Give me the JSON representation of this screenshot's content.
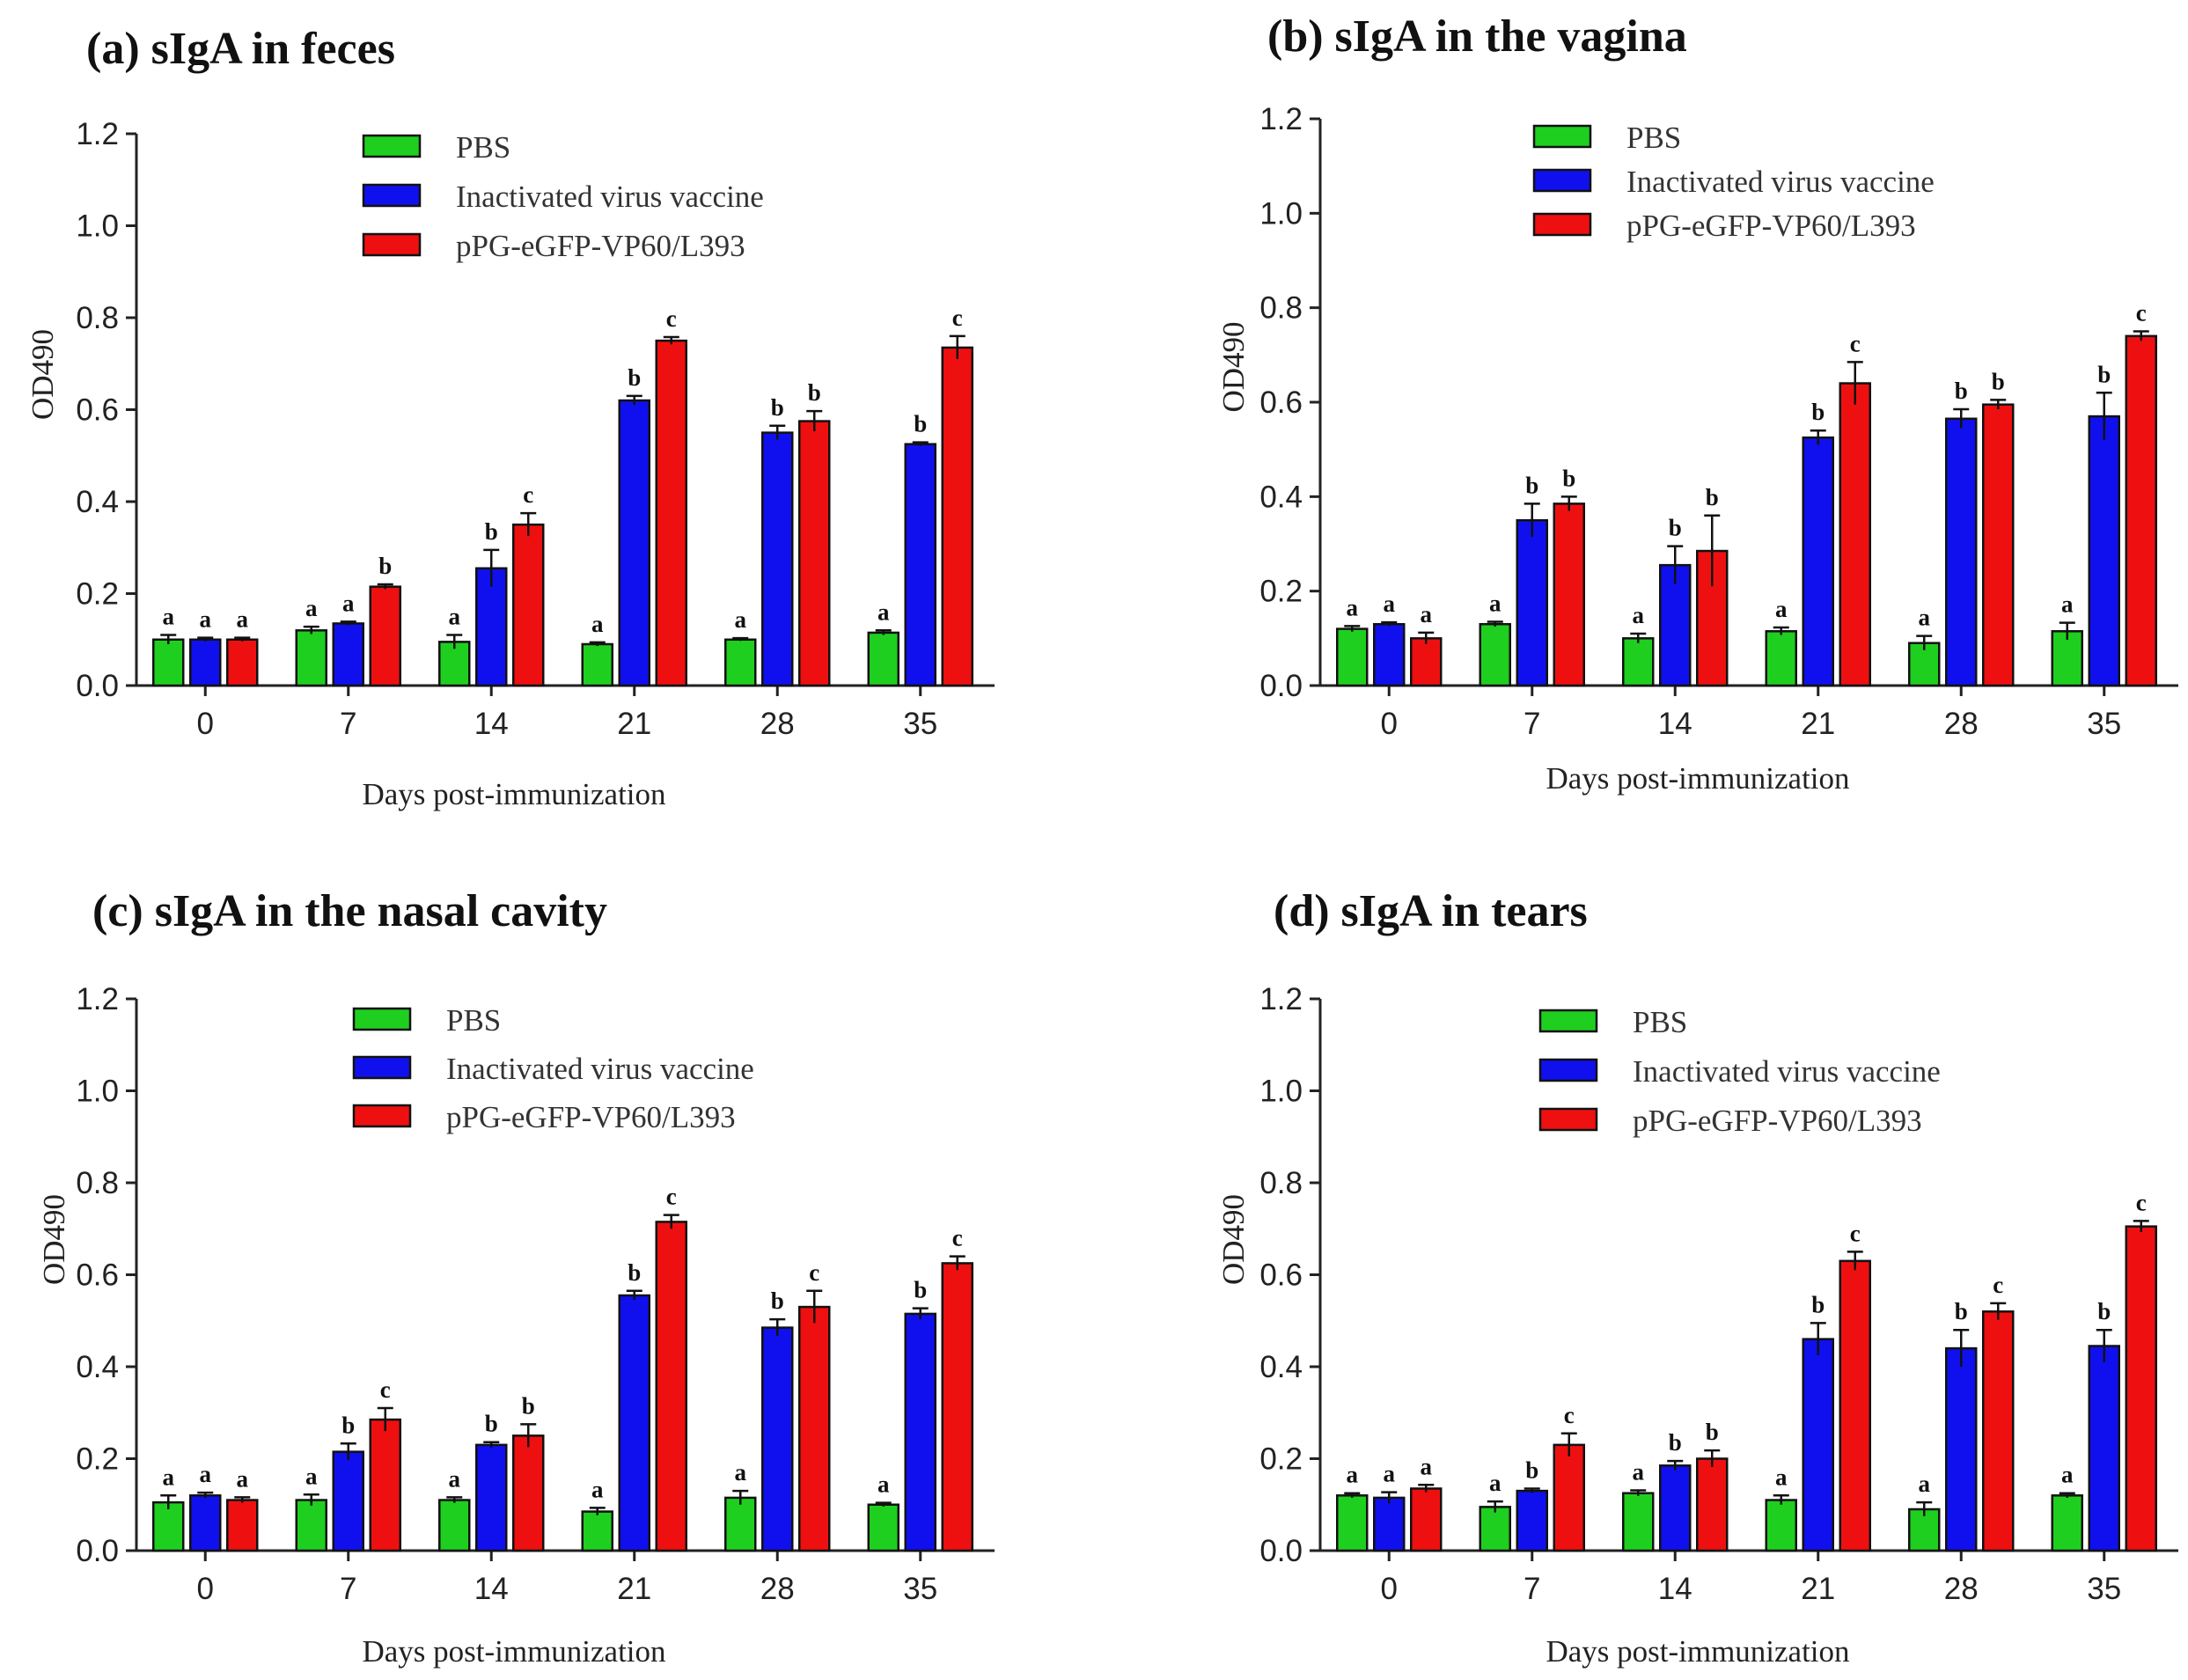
{
  "chart_data": [
    {
      "type": "bar",
      "title": "(a) sIgA in feces",
      "xlabel": "Days post-immunization",
      "ylabel": "OD490",
      "ylim": [
        0,
        1.2
      ],
      "yticks": [
        "0.0",
        "0.2",
        "0.4",
        "0.6",
        "0.8",
        "1.0",
        "1.2"
      ],
      "categories": [
        "0",
        "7",
        "14",
        "21",
        "28",
        "35"
      ],
      "legend_position": "top-center",
      "series": [
        {
          "name": "PBS",
          "color": "#1fcf1f",
          "values": [
            0.1,
            0.12,
            0.095,
            0.09,
            0.1,
            0.115
          ],
          "errors": [
            0.01,
            0.008,
            0.015,
            0.004,
            0.003,
            0.005
          ],
          "letters": [
            "a",
            "a",
            "a",
            "a",
            "a",
            "a"
          ]
        },
        {
          "name": "Inactivated virus vaccine",
          "color": "#1010ee",
          "values": [
            0.1,
            0.135,
            0.255,
            0.62,
            0.55,
            0.525
          ],
          "errors": [
            0.004,
            0.004,
            0.04,
            0.01,
            0.015,
            0.004
          ],
          "letters": [
            "a",
            "a",
            "b",
            "b",
            "b",
            "b"
          ]
        },
        {
          "name": "pPG-eGFP-VP60/L393",
          "color": "#ee1010",
          "values": [
            0.1,
            0.215,
            0.35,
            0.75,
            0.575,
            0.735
          ],
          "errors": [
            0.004,
            0.005,
            0.025,
            0.008,
            0.022,
            0.025
          ],
          "letters": [
            "a",
            "b",
            "c",
            "c",
            "b",
            "c"
          ]
        }
      ]
    },
    {
      "type": "bar",
      "title": "(b) sIgA in the vagina",
      "xlabel": "Days post-immunization",
      "ylabel": "OD490",
      "ylim": [
        0,
        1.2
      ],
      "yticks": [
        "0.0",
        "0.2",
        "0.4",
        "0.6",
        "0.8",
        "1.0",
        "1.2"
      ],
      "categories": [
        "0",
        "7",
        "14",
        "21",
        "28",
        "35"
      ],
      "legend_position": "top-center",
      "series": [
        {
          "name": "PBS",
          "color": "#1fcf1f",
          "values": [
            0.12,
            0.13,
            0.1,
            0.115,
            0.09,
            0.115
          ],
          "errors": [
            0.006,
            0.005,
            0.01,
            0.008,
            0.015,
            0.018
          ],
          "letters": [
            "a",
            "a",
            "a",
            "a",
            "a",
            "a"
          ]
        },
        {
          "name": "Inactivated virus vaccine",
          "color": "#1010ee",
          "values": [
            0.13,
            0.35,
            0.255,
            0.525,
            0.565,
            0.57
          ],
          "errors": [
            0.004,
            0.035,
            0.04,
            0.015,
            0.02,
            0.05
          ],
          "letters": [
            "a",
            "b",
            "b",
            "b",
            "b",
            "b"
          ]
        },
        {
          "name": "pPG-eGFP-VP60/L393",
          "color": "#ee1010",
          "values": [
            0.1,
            0.385,
            0.285,
            0.64,
            0.595,
            0.74
          ],
          "errors": [
            0.012,
            0.015,
            0.075,
            0.045,
            0.01,
            0.01
          ],
          "letters": [
            "a",
            "b",
            "b",
            "c",
            "b",
            "c"
          ]
        }
      ]
    },
    {
      "type": "bar",
      "title": "(c) sIgA in the nasal cavity",
      "xlabel": "Days post-immunization",
      "ylabel": "OD490",
      "ylim": [
        0,
        1.2
      ],
      "yticks": [
        "0.0",
        "0.2",
        "0.4",
        "0.6",
        "0.8",
        "1.0",
        "1.2"
      ],
      "categories": [
        "0",
        "7",
        "14",
        "21",
        "28",
        "35"
      ],
      "legend_position": "top-center",
      "series": [
        {
          "name": "PBS",
          "color": "#1fcf1f",
          "values": [
            0.105,
            0.11,
            0.11,
            0.085,
            0.115,
            0.1
          ],
          "errors": [
            0.015,
            0.012,
            0.006,
            0.008,
            0.015,
            0.004
          ],
          "letters": [
            "a",
            "a",
            "a",
            "a",
            "a",
            "a"
          ]
        },
        {
          "name": "Inactivated virus vaccine",
          "color": "#1010ee",
          "values": [
            0.12,
            0.215,
            0.23,
            0.555,
            0.485,
            0.515
          ],
          "errors": [
            0.006,
            0.018,
            0.006,
            0.01,
            0.018,
            0.012
          ],
          "letters": [
            "a",
            "b",
            "b",
            "b",
            "b",
            "b"
          ]
        },
        {
          "name": "pPG-eGFP-VP60/L393",
          "color": "#ee1010",
          "values": [
            0.11,
            0.285,
            0.25,
            0.715,
            0.53,
            0.625
          ],
          "errors": [
            0.006,
            0.025,
            0.025,
            0.015,
            0.035,
            0.015
          ],
          "letters": [
            "a",
            "c",
            "b",
            "c",
            "c",
            "c"
          ]
        }
      ]
    },
    {
      "type": "bar",
      "title": "(d) sIgA in tears",
      "xlabel": "Days post-immunization",
      "ylabel": "OD490",
      "ylim": [
        0,
        1.2
      ],
      "yticks": [
        "0.0",
        "0.2",
        "0.4",
        "0.6",
        "0.8",
        "1.0",
        "1.2"
      ],
      "categories": [
        "0",
        "7",
        "14",
        "21",
        "28",
        "35"
      ],
      "legend_position": "top-center",
      "series": [
        {
          "name": "PBS",
          "color": "#1fcf1f",
          "values": [
            0.12,
            0.095,
            0.125,
            0.11,
            0.09,
            0.12
          ],
          "errors": [
            0.005,
            0.012,
            0.006,
            0.01,
            0.015,
            0.005
          ],
          "letters": [
            "a",
            "a",
            "a",
            "a",
            "a",
            "a"
          ]
        },
        {
          "name": "Inactivated virus vaccine",
          "color": "#1010ee",
          "values": [
            0.115,
            0.13,
            0.185,
            0.46,
            0.44,
            0.445
          ],
          "errors": [
            0.012,
            0.005,
            0.01,
            0.035,
            0.04,
            0.035
          ],
          "letters": [
            "a",
            "b",
            "b",
            "b",
            "b",
            "b"
          ]
        },
        {
          "name": "pPG-eGFP-VP60/L393",
          "color": "#ee1010",
          "values": [
            0.135,
            0.23,
            0.2,
            0.63,
            0.52,
            0.705
          ],
          "errors": [
            0.008,
            0.025,
            0.018,
            0.02,
            0.018,
            0.012
          ],
          "letters": [
            "a",
            "c",
            "b",
            "c",
            "c",
            "c"
          ]
        }
      ]
    }
  ]
}
